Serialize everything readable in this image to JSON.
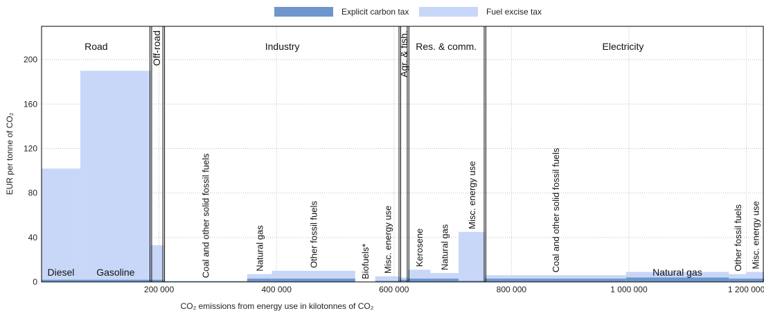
{
  "legend": {
    "explicit": "Explicit carbon tax",
    "excise": "Fuel excise tax"
  },
  "colors": {
    "explicit": "#6e96cc",
    "excise": "#c8d7f8",
    "grid": "#bbbbbb"
  },
  "chart_data": {
    "type": "bar",
    "xlabel": "CO₂ emissions from energy use in kilotonnes of CO₂",
    "ylabel": "EUR per tonne of CO₂",
    "xlim": [
      0,
      1230000
    ],
    "ylim": [
      0,
      230
    ],
    "yticks": [
      0,
      40,
      80,
      120,
      160,
      200
    ],
    "xticks": [
      {
        "value": 200000,
        "label": "200 000"
      },
      {
        "value": 400000,
        "label": "400 000"
      },
      {
        "value": 600000,
        "label": "600 000"
      },
      {
        "value": 800000,
        "label": "800 000"
      },
      {
        "value": 1000000,
        "label": "1 000 000"
      },
      {
        "value": 1200000,
        "label": "1 200 000"
      }
    ],
    "sectors": [
      {
        "name": "Road",
        "x0": 0,
        "x1": 186000,
        "label_x": 93000,
        "vertical": false
      },
      {
        "name": "Off-road",
        "x0": 186000,
        "x1": 208000,
        "label_x": 196000,
        "vertical": true
      },
      {
        "name": "Industry",
        "x0": 208000,
        "x1": 610000,
        "label_x": 410000,
        "vertical": false
      },
      {
        "name": "Agr. & fish.",
        "x0": 610000,
        "x1": 624000,
        "label_x": 617000,
        "vertical": true
      },
      {
        "name": "Res. & comm.",
        "x0": 624000,
        "x1": 755000,
        "label_x": 689000,
        "vertical": false
      },
      {
        "name": "Electricity",
        "x0": 755000,
        "x1": 1230000,
        "label_x": 990000,
        "vertical": false
      }
    ],
    "segments": [
      {
        "label": "Diesel",
        "x0": 0,
        "x1": 66000,
        "explicit": 2,
        "excise": 100,
        "vertical": false
      },
      {
        "label": "Gasoline",
        "x0": 66000,
        "x1": 186000,
        "explicit": 2,
        "excise": 188,
        "vertical": false
      },
      {
        "label": "",
        "x0": 186000,
        "x1": 208000,
        "explicit": 2,
        "excise": 31,
        "vertical": false
      },
      {
        "label": "Coal and other solid fossil fuels",
        "x0": 208000,
        "x1": 350000,
        "explicit": 0.5,
        "excise": 0.5,
        "vertical": true
      },
      {
        "label": "Natural gas",
        "x0": 350000,
        "x1": 392000,
        "explicit": 3,
        "excise": 4,
        "vertical": true
      },
      {
        "label": "Other fossil fuels",
        "x0": 392000,
        "x1": 534000,
        "explicit": 3,
        "excise": 7,
        "vertical": true
      },
      {
        "label": "Biofuels*",
        "x0": 534000,
        "x1": 568000,
        "explicit": 0,
        "excise": 0,
        "vertical": true
      },
      {
        "label": "Misc. energy use",
        "x0": 568000,
        "x1": 610000,
        "explicit": 1,
        "excise": 4,
        "vertical": true
      },
      {
        "label": "",
        "x0": 610000,
        "x1": 624000,
        "explicit": 2,
        "excise": 2,
        "vertical": false
      },
      {
        "label": "Kerosene",
        "x0": 624000,
        "x1": 662000,
        "explicit": 3,
        "excise": 8,
        "vertical": true
      },
      {
        "label": "Natural gas",
        "x0": 662000,
        "x1": 710000,
        "explicit": 3,
        "excise": 5,
        "vertical": true
      },
      {
        "label": "Misc. energy use",
        "x0": 710000,
        "x1": 755000,
        "explicit": 1,
        "excise": 44,
        "vertical": true
      },
      {
        "label": "Coal and other solid fossil fuels",
        "x0": 755000,
        "x1": 995000,
        "explicit": 3,
        "excise": 3,
        "vertical": true
      },
      {
        "label": "Natural gas",
        "x0": 995000,
        "x1": 1170000,
        "explicit": 4,
        "excise": 5,
        "vertical": false
      },
      {
        "label": "Other fossil fuels",
        "x0": 1170000,
        "x1": 1200000,
        "explicit": 3,
        "excise": 4,
        "vertical": true
      },
      {
        "label": "Misc. energy use",
        "x0": 1200000,
        "x1": 1230000,
        "explicit": 3,
        "excise": 6,
        "vertical": true
      }
    ]
  }
}
